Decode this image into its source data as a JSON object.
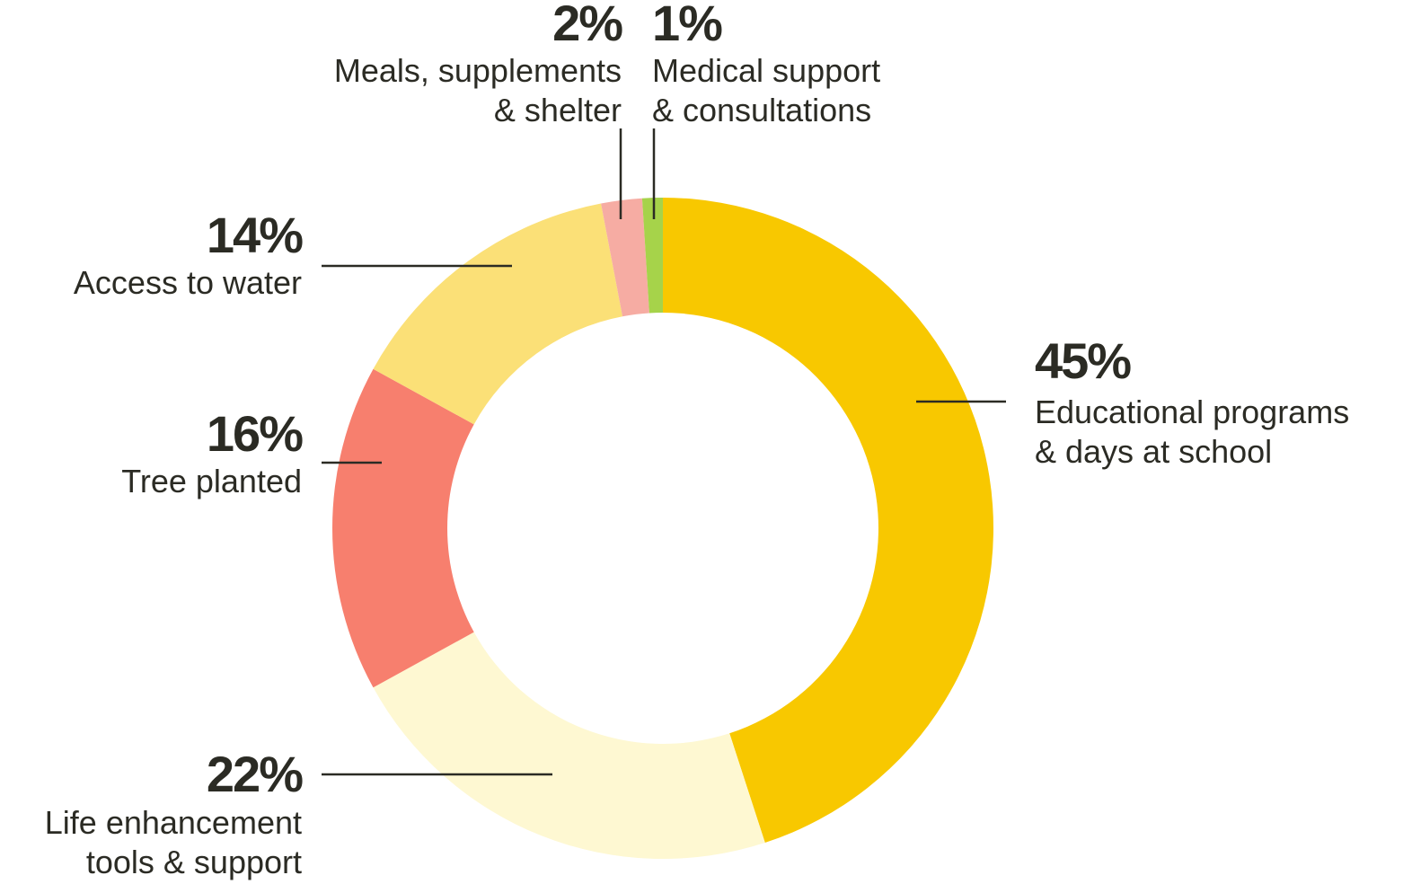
{
  "chart_data": {
    "type": "pie",
    "donut": true,
    "slices": [
      {
        "value": 45,
        "pct_label": "45%",
        "label_lines": [
          "Educational programs",
          "& days at school"
        ],
        "color": "#f8c800"
      },
      {
        "value": 22,
        "pct_label": "22%",
        "label_lines": [
          "Life enhancement",
          "tools & support"
        ],
        "color": "#fef8d2"
      },
      {
        "value": 16,
        "pct_label": "16%",
        "label_lines": [
          "Tree planted"
        ],
        "color": "#f77f6e"
      },
      {
        "value": 14,
        "pct_label": "14%",
        "label_lines": [
          "Access to water"
        ],
        "color": "#fbe077"
      },
      {
        "value": 2,
        "pct_label": "2%",
        "label_lines": [
          "Meals, supplements",
          "& shelter"
        ],
        "color": "#f6aca3"
      },
      {
        "value": 1,
        "pct_label": "1%",
        "label_lines": [
          "Medical support",
          "& consultations"
        ],
        "color": "#a6d34a"
      }
    ],
    "legend": "none"
  }
}
